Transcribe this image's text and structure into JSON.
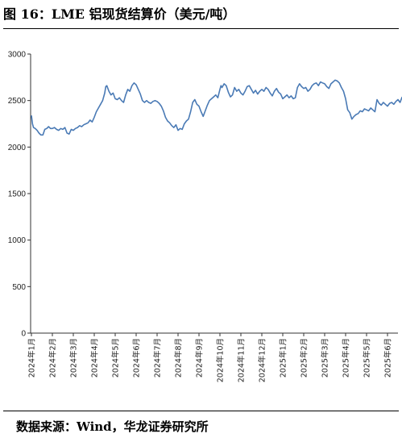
{
  "title": "图 16：LME 铝现货结算价（美元/吨）",
  "source": "数据来源：Wind，华龙证券研究所",
  "chart_data": {
    "type": "line",
    "ylim": [
      0,
      3000
    ],
    "yticks": [
      0,
      500,
      1000,
      1500,
      2000,
      2500,
      3000
    ],
    "x_categories": [
      "2024年1月",
      "2024年2月",
      "2024年3月",
      "2024年4月",
      "2024年5月",
      "2024年6月",
      "2024年7月",
      "2024年8月",
      "2024年9月",
      "2024年10月",
      "2024年11月",
      "2024年12月",
      "2025年1月",
      "2025年2月",
      "2025年3月",
      "2025年4月",
      "2025年5月",
      "2025年6月"
    ],
    "grid": false,
    "legend": "none",
    "line_color": "#4a7ab5",
    "series": [
      {
        "name": "",
        "points": [
          [
            0.0,
            2340
          ],
          [
            0.05,
            2250
          ],
          [
            0.1,
            2210
          ],
          [
            0.18,
            2200
          ],
          [
            0.27,
            2180
          ],
          [
            0.36,
            2150
          ],
          [
            0.45,
            2130
          ],
          [
            0.55,
            2130
          ],
          [
            0.64,
            2190
          ],
          [
            0.73,
            2200
          ],
          [
            0.82,
            2220
          ],
          [
            0.91,
            2200
          ],
          [
            1.0,
            2200
          ],
          [
            1.1,
            2210
          ],
          [
            1.2,
            2190
          ],
          [
            1.3,
            2180
          ],
          [
            1.4,
            2200
          ],
          [
            1.5,
            2190
          ],
          [
            1.6,
            2210
          ],
          [
            1.7,
            2150
          ],
          [
            1.8,
            2140
          ],
          [
            1.9,
            2190
          ],
          [
            2.0,
            2180
          ],
          [
            2.1,
            2200
          ],
          [
            2.2,
            2210
          ],
          [
            2.3,
            2230
          ],
          [
            2.4,
            2220
          ],
          [
            2.5,
            2240
          ],
          [
            2.6,
            2250
          ],
          [
            2.7,
            2260
          ],
          [
            2.8,
            2290
          ],
          [
            2.9,
            2270
          ],
          [
            3.0,
            2320
          ],
          [
            3.1,
            2380
          ],
          [
            3.2,
            2420
          ],
          [
            3.3,
            2460
          ],
          [
            3.4,
            2500
          ],
          [
            3.5,
            2580
          ],
          [
            3.55,
            2650
          ],
          [
            3.6,
            2660
          ],
          [
            3.7,
            2600
          ],
          [
            3.8,
            2560
          ],
          [
            3.9,
            2580
          ],
          [
            4.0,
            2520
          ],
          [
            4.1,
            2510
          ],
          [
            4.2,
            2530
          ],
          [
            4.3,
            2500
          ],
          [
            4.4,
            2480
          ],
          [
            4.5,
            2560
          ],
          [
            4.6,
            2620
          ],
          [
            4.7,
            2600
          ],
          [
            4.8,
            2660
          ],
          [
            4.9,
            2690
          ],
          [
            5.0,
            2670
          ],
          [
            5.1,
            2620
          ],
          [
            5.2,
            2570
          ],
          [
            5.3,
            2500
          ],
          [
            5.4,
            2480
          ],
          [
            5.5,
            2500
          ],
          [
            5.6,
            2480
          ],
          [
            5.7,
            2470
          ],
          [
            5.8,
            2490
          ],
          [
            5.9,
            2500
          ],
          [
            6.0,
            2490
          ],
          [
            6.1,
            2470
          ],
          [
            6.2,
            2440
          ],
          [
            6.3,
            2390
          ],
          [
            6.4,
            2320
          ],
          [
            6.5,
            2280
          ],
          [
            6.6,
            2260
          ],
          [
            6.7,
            2230
          ],
          [
            6.8,
            2210
          ],
          [
            6.9,
            2240
          ],
          [
            7.0,
            2180
          ],
          [
            7.1,
            2200
          ],
          [
            7.2,
            2190
          ],
          [
            7.3,
            2250
          ],
          [
            7.4,
            2280
          ],
          [
            7.5,
            2300
          ],
          [
            7.6,
            2380
          ],
          [
            7.7,
            2480
          ],
          [
            7.8,
            2510
          ],
          [
            7.9,
            2460
          ],
          [
            8.0,
            2440
          ],
          [
            8.1,
            2380
          ],
          [
            8.2,
            2330
          ],
          [
            8.3,
            2390
          ],
          [
            8.4,
            2450
          ],
          [
            8.5,
            2500
          ],
          [
            8.6,
            2520
          ],
          [
            8.7,
            2540
          ],
          [
            8.8,
            2560
          ],
          [
            8.9,
            2530
          ],
          [
            9.0,
            2620
          ],
          [
            9.05,
            2660
          ],
          [
            9.1,
            2640
          ],
          [
            9.2,
            2680
          ],
          [
            9.3,
            2660
          ],
          [
            9.4,
            2590
          ],
          [
            9.5,
            2540
          ],
          [
            9.6,
            2560
          ],
          [
            9.7,
            2640
          ],
          [
            9.8,
            2600
          ],
          [
            9.9,
            2620
          ],
          [
            10.0,
            2580
          ],
          [
            10.1,
            2560
          ],
          [
            10.2,
            2600
          ],
          [
            10.3,
            2650
          ],
          [
            10.4,
            2660
          ],
          [
            10.5,
            2620
          ],
          [
            10.6,
            2580
          ],
          [
            10.7,
            2610
          ],
          [
            10.8,
            2570
          ],
          [
            10.9,
            2600
          ],
          [
            11.0,
            2620
          ],
          [
            11.1,
            2600
          ],
          [
            11.2,
            2640
          ],
          [
            11.3,
            2620
          ],
          [
            11.4,
            2580
          ],
          [
            11.5,
            2550
          ],
          [
            11.6,
            2600
          ],
          [
            11.7,
            2630
          ],
          [
            11.8,
            2590
          ],
          [
            11.9,
            2570
          ],
          [
            12.0,
            2520
          ],
          [
            12.1,
            2540
          ],
          [
            12.2,
            2560
          ],
          [
            12.3,
            2530
          ],
          [
            12.4,
            2550
          ],
          [
            12.5,
            2520
          ],
          [
            12.6,
            2530
          ],
          [
            12.7,
            2640
          ],
          [
            12.8,
            2680
          ],
          [
            12.9,
            2650
          ],
          [
            13.0,
            2630
          ],
          [
            13.1,
            2640
          ],
          [
            13.2,
            2600
          ],
          [
            13.3,
            2620
          ],
          [
            13.4,
            2660
          ],
          [
            13.5,
            2680
          ],
          [
            13.6,
            2690
          ],
          [
            13.7,
            2660
          ],
          [
            13.8,
            2700
          ],
          [
            13.9,
            2690
          ],
          [
            14.0,
            2680
          ],
          [
            14.1,
            2650
          ],
          [
            14.2,
            2630
          ],
          [
            14.3,
            2680
          ],
          [
            14.4,
            2700
          ],
          [
            14.5,
            2720
          ],
          [
            14.6,
            2710
          ],
          [
            14.7,
            2690
          ],
          [
            14.8,
            2640
          ],
          [
            14.9,
            2600
          ],
          [
            15.0,
            2520
          ],
          [
            15.1,
            2400
          ],
          [
            15.2,
            2370
          ],
          [
            15.3,
            2300
          ],
          [
            15.4,
            2330
          ],
          [
            15.5,
            2350
          ],
          [
            15.6,
            2360
          ],
          [
            15.7,
            2390
          ],
          [
            15.8,
            2380
          ],
          [
            15.9,
            2410
          ],
          [
            16.0,
            2400
          ],
          [
            16.1,
            2390
          ],
          [
            16.2,
            2420
          ],
          [
            16.3,
            2400
          ],
          [
            16.4,
            2380
          ],
          [
            16.5,
            2510
          ],
          [
            16.6,
            2470
          ],
          [
            16.7,
            2450
          ],
          [
            16.8,
            2480
          ],
          [
            16.9,
            2460
          ],
          [
            17.0,
            2440
          ],
          [
            17.1,
            2470
          ],
          [
            17.2,
            2480
          ],
          [
            17.3,
            2460
          ],
          [
            17.4,
            2490
          ],
          [
            17.5,
            2510
          ],
          [
            17.6,
            2480
          ],
          [
            17.7,
            2540
          ]
        ]
      }
    ]
  }
}
